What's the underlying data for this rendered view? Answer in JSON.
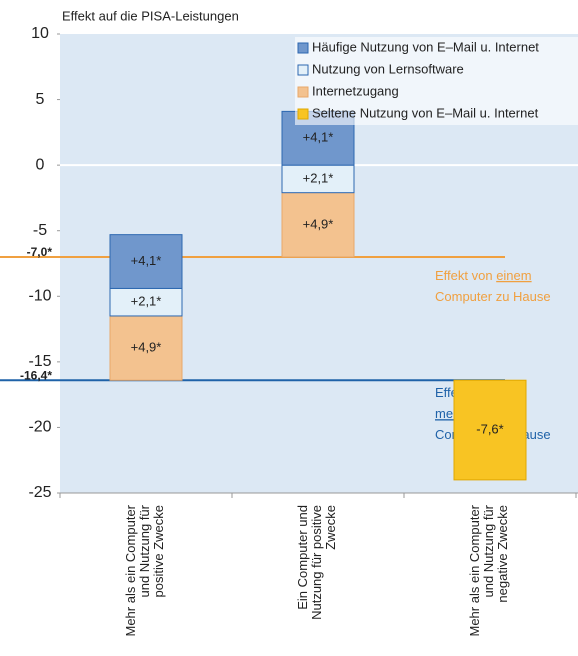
{
  "chart_data": {
    "type": "bar",
    "title": "Effekt auf die PISA-Leistungen",
    "categories": [
      "Mehr als ein Computer\nund Nutzung für\npositive Zwecke",
      "Ein Computer und\nNutzung für positive\nZwecke",
      "Mehr als ein Computer\nund Nutzung für\nnegative Zwecke"
    ],
    "baseline": [
      1,
      0,
      1
    ],
    "series": [
      {
        "name": "Häufige Nutzung von E–Mail u. Internet",
        "color": "#7097cc",
        "stroke": "#2c67b0",
        "values": [
          4.1,
          4.1,
          null
        ],
        "value_labels": [
          "+4,1*",
          "+4,1*",
          null
        ]
      },
      {
        "name": "Nutzung von Lernsoftware",
        "color": "#e3f0f9",
        "stroke": "#2c67b0",
        "values": [
          2.1,
          2.1,
          null
        ],
        "value_labels": [
          "+2,1*",
          "+2,1*",
          null
        ]
      },
      {
        "name": "Internetzugang",
        "color": "#f3c28f",
        "stroke": "#e8a86a",
        "values": [
          4.9,
          4.9,
          null
        ],
        "value_labels": [
          "+4,9*",
          "+4,9*",
          null
        ]
      },
      {
        "name": "Seltene Nutzung von E–Mail u. Internet",
        "color": "#f8c423",
        "stroke": "#e0a800",
        "label_color": "#b8441c",
        "values": [
          null,
          null,
          -7.6
        ],
        "value_labels": [
          null,
          null,
          "-7,6*"
        ]
      }
    ],
    "reference_lines": [
      {
        "value": -7.0,
        "label": "-7,0*",
        "color": "#f0a040",
        "annotation": [
          [
            {
              "text": "Effekt von "
            },
            {
              "text": "einem",
              "underline": true
            }
          ],
          [
            {
              "text": "Computer zu Hause"
            }
          ]
        ]
      },
      {
        "value": -16.4,
        "label": "-16,4*",
        "color": "#1f62a8",
        "annotation": [
          [
            {
              "text": "Effekt von"
            }
          ],
          [
            {
              "text": "mehr als einem",
              "underline": true
            }
          ],
          [
            {
              "text": "Computer zu Hause"
            }
          ]
        ]
      }
    ],
    "ylim": [
      -25,
      10
    ],
    "yticks": [
      -25,
      -20,
      -15,
      -10,
      -5,
      0,
      5,
      10
    ]
  }
}
